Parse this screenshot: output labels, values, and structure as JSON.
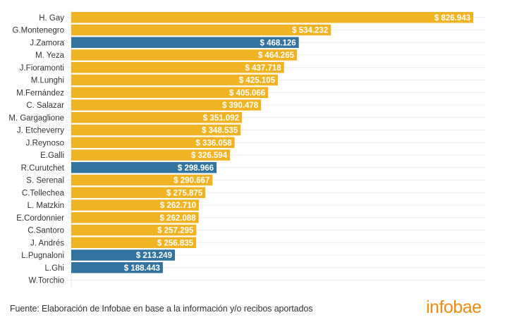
{
  "chart_data": {
    "type": "bar",
    "orientation": "horizontal",
    "title": "",
    "xlabel": "",
    "ylabel": "",
    "currency_prefix": "$ ",
    "categories": [
      "H. Gay",
      "G.Montenegro",
      "J.Zamora",
      "M. Yeza",
      "J.Fioramonti",
      "M.Lunghi",
      "M.Fernández",
      "C. Salazar",
      "M. Gargaglione",
      "J. Etcheverry",
      "J.Reynoso",
      "E.Galli",
      "R.Curutchet",
      "S. Serenal",
      "C.Tellechea",
      "L. Matzkin",
      "E.Cordonnier",
      "C.Santoro",
      "J. Andrés",
      "L.Pugnaloni",
      "L.Ghi",
      "W.Torchio"
    ],
    "values": [
      826943,
      534232,
      468126,
      464265,
      437718,
      425105,
      405066,
      390478,
      351092,
      348535,
      336058,
      326594,
      298966,
      290667,
      275875,
      262710,
      262088,
      257295,
      256835,
      213249,
      188443,
      null
    ],
    "value_labels": [
      "$ 826.943",
      "$ 534.232",
      "$ 468.126",
      "$ 464.265",
      "$ 437.718",
      "$ 425.105",
      "$ 405.066",
      "$ 390.478",
      "$ 351.092",
      "$ 348.535",
      "$ 336.058",
      "$ 326.594",
      "$ 298.966",
      "$ 290.667",
      "$ 275.875",
      "$ 262.710",
      "$ 262.088",
      "$ 257.295",
      "$ 256.835",
      "$ 213.249",
      "$ 188.443",
      ""
    ],
    "groups": [
      "yellow",
      "yellow",
      "blue",
      "yellow",
      "yellow",
      "yellow",
      "yellow",
      "yellow",
      "yellow",
      "yellow",
      "yellow",
      "yellow",
      "blue",
      "yellow",
      "yellow",
      "yellow",
      "yellow",
      "yellow",
      "yellow",
      "blue",
      "blue",
      "yellow"
    ],
    "colors": {
      "yellow": "#f0b323",
      "blue": "#33739f"
    },
    "xlim": [
      0,
      826943
    ],
    "grid": true,
    "legend": "none"
  },
  "footer": {
    "source": "Fuente: Elaboración de Infobae en base a la información y/o recibos aportados",
    "logo": "infobae"
  }
}
